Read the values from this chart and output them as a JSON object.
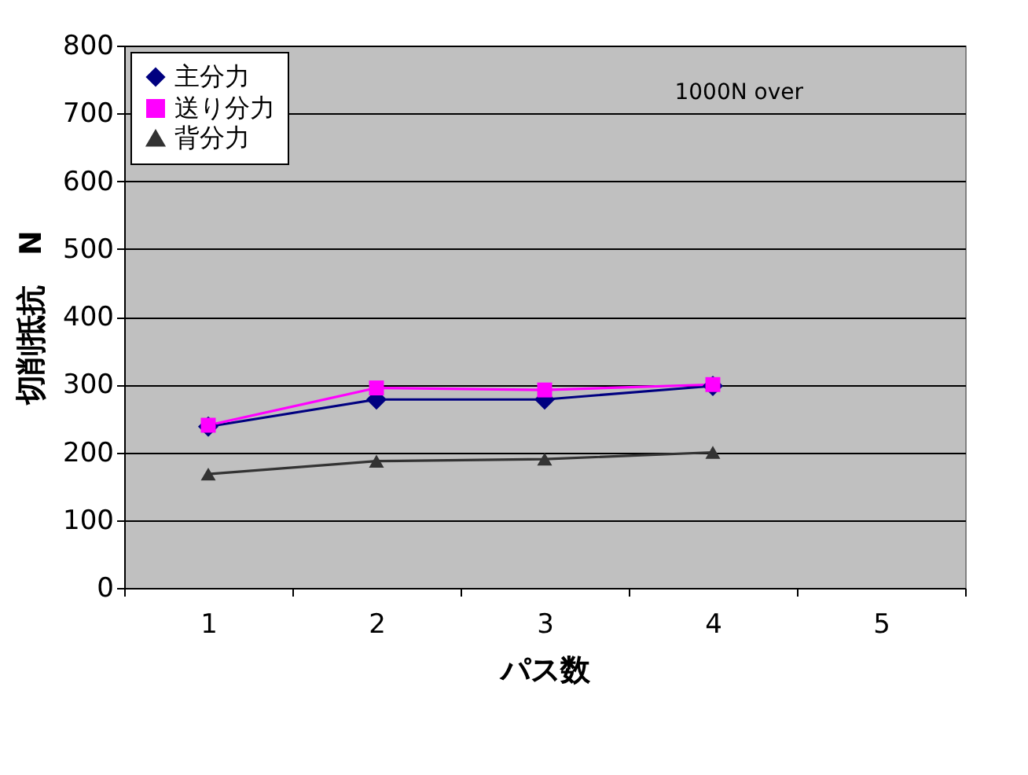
{
  "chart_data": {
    "type": "line",
    "xlabel": "パス数",
    "ylabel": "切削抵抗　N",
    "categories": [
      "1",
      "2",
      "3",
      "4",
      "5"
    ],
    "series": [
      {
        "name": "主分力",
        "color": "#000080",
        "marker": "diamond",
        "values": [
          238,
          278,
          278,
          298,
          null
        ]
      },
      {
        "name": "送り分力",
        "color": "#ff00ff",
        "marker": "square",
        "values": [
          240,
          295,
          292,
          300,
          null
        ]
      },
      {
        "name": "背分力",
        "color": "#333333",
        "marker": "triangle",
        "values": [
          168,
          187,
          190,
          200,
          null
        ]
      }
    ],
    "ylim": [
      0,
      800
    ],
    "yticks": [
      0,
      100,
      200,
      300,
      400,
      500,
      600,
      700,
      800
    ],
    "grid": "y",
    "legend": "top left",
    "annotations": [
      "1000N over"
    ]
  }
}
